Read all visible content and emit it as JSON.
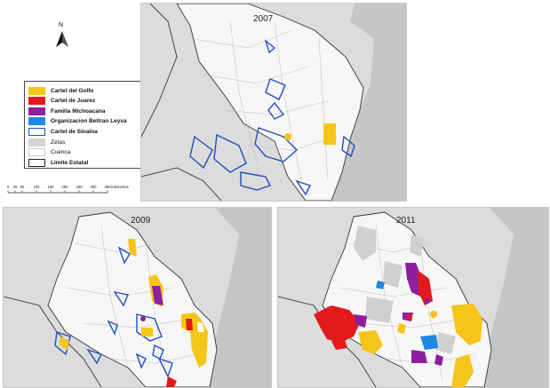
{
  "north_arrow": {
    "letter": "N",
    "icon": "north-arrow-icon"
  },
  "legend": {
    "items": [
      {
        "label": "Cartel del Golfo",
        "color": "#f5c518",
        "kind": "fill",
        "bold": true
      },
      {
        "label": "Cartel de Juarez",
        "color": "#e31a1c",
        "kind": "fill",
        "bold": true
      },
      {
        "label": "Familia Michoacana",
        "color": "#8e1f9e",
        "kind": "fill",
        "bold": true
      },
      {
        "label": "Organizacion Beltran Leyva",
        "color": "#1e88e5",
        "kind": "fill",
        "bold": true
      },
      {
        "label": "Cartel de Sinaloa",
        "color": "#2050c0",
        "kind": "outline",
        "bold": true
      },
      {
        "label": "Zetas",
        "color": "#d4d4d4",
        "kind": "fill",
        "bold": false
      },
      {
        "label": "Cuenca",
        "color": "#ffffff",
        "kind": "fill",
        "bold": false
      },
      {
        "label": "Limite Estatal",
        "color": "#222222",
        "kind": "outline",
        "bold": true
      }
    ]
  },
  "scale_bar": {
    "ticks": [
      "0",
      "25",
      "50",
      "100",
      "150",
      "200",
      "250",
      "300",
      "350"
    ],
    "unit": "Kilometros"
  },
  "maps": [
    {
      "year": "2007"
    },
    {
      "year": "2009"
    },
    {
      "year": "2011"
    }
  ]
}
